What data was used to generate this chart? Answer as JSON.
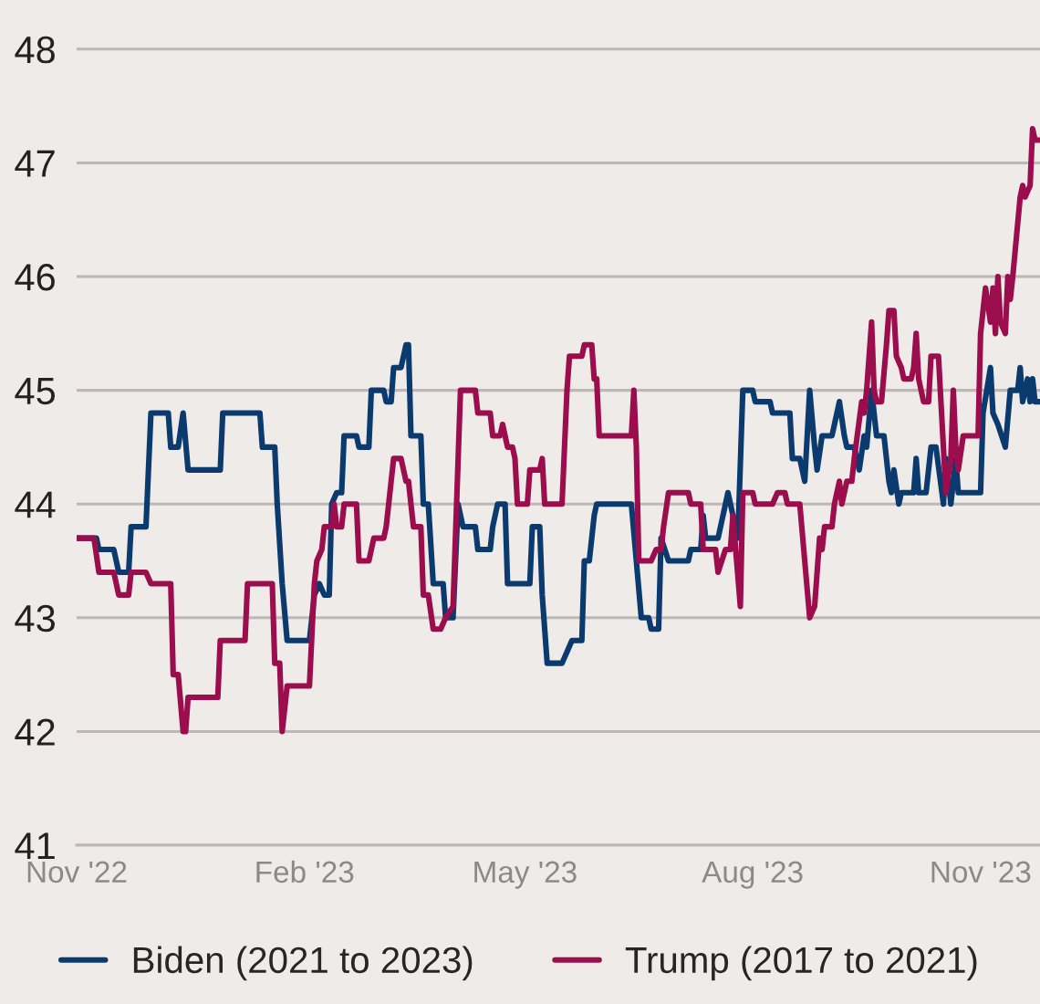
{
  "chart_data": {
    "type": "line",
    "xlim": [
      "2022-11-01",
      "2023-11-25"
    ],
    "xticks": [
      {
        "value": "2022-11-01",
        "label": "Nov '22"
      },
      {
        "value": "2023-02-01",
        "label": "Feb '23"
      },
      {
        "value": "2023-05-01",
        "label": "May '23"
      },
      {
        "value": "2023-08-01",
        "label": "Aug '23"
      },
      {
        "value": "2023-11-01",
        "label": "Nov '23"
      }
    ],
    "ylim": [
      41,
      48.4
    ],
    "yticks": [
      41,
      42,
      43,
      44,
      45,
      46,
      47,
      48
    ],
    "grid": "y",
    "legend": "bottom",
    "series": [
      {
        "name": "Biden (2021 to 2023)",
        "color": "#0b3a6f",
        "x": [
          "2022-11-01",
          "2022-11-09",
          "2022-11-10",
          "2022-11-16",
          "2022-11-18",
          "2022-11-22",
          "2022-11-23",
          "2022-11-29",
          "2022-12-01",
          "2022-12-08",
          "2022-12-09",
          "2022-12-12",
          "2022-12-14",
          "2022-12-16",
          "2022-12-29",
          "2022-12-30",
          "2023-01-14",
          "2023-01-15",
          "2023-01-20",
          "2023-01-21",
          "2023-01-23",
          "2023-01-25",
          "2023-02-03",
          "2023-02-05",
          "2023-02-07",
          "2023-02-09",
          "2023-02-11",
          "2023-02-12",
          "2023-02-14",
          "2023-02-16",
          "2023-02-17",
          "2023-02-22",
          "2023-02-23",
          "2023-02-27",
          "2023-02-28",
          "2023-03-05",
          "2023-03-06",
          "2023-03-08",
          "2023-03-09",
          "2023-03-12",
          "2023-03-14",
          "2023-03-15",
          "2023-03-16",
          "2023-03-20",
          "2023-03-21",
          "2023-03-23",
          "2023-03-25",
          "2023-03-29",
          "2023-03-30",
          "2023-04-02",
          "2023-04-03",
          "2023-04-04",
          "2023-04-06",
          "2023-04-11",
          "2023-04-12",
          "2023-04-17",
          "2023-04-18",
          "2023-04-20",
          "2023-04-23",
          "2023-04-24",
          "2023-05-03",
          "2023-05-04",
          "2023-05-07",
          "2023-05-08",
          "2023-05-10",
          "2023-05-16",
          "2023-05-18",
          "2023-05-20",
          "2023-05-24",
          "2023-05-25",
          "2023-05-27",
          "2023-05-29",
          "2023-05-30",
          "2023-06-13",
          "2023-06-17",
          "2023-06-20",
          "2023-06-21",
          "2023-06-24",
          "2023-06-25",
          "2023-06-28",
          "2023-07-06",
          "2023-07-07",
          "2023-07-11",
          "2023-07-12",
          "2023-07-13",
          "2023-07-18",
          "2023-07-22",
          "2023-07-23",
          "2023-07-25",
          "2023-07-26",
          "2023-07-28",
          "2023-08-01",
          "2023-08-02",
          "2023-08-08",
          "2023-08-09",
          "2023-08-16",
          "2023-08-17",
          "2023-08-20",
          "2023-08-22",
          "2023-08-24",
          "2023-08-26",
          "2023-08-27",
          "2023-08-29",
          "2023-09-02",
          "2023-09-03",
          "2023-09-05",
          "2023-09-07",
          "2023-09-08",
          "2023-09-11",
          "2023-09-13",
          "2023-09-15",
          "2023-09-16",
          "2023-09-18",
          "2023-09-20",
          "2023-09-23",
          "2023-09-25",
          "2023-09-26",
          "2023-09-27",
          "2023-09-29",
          "2023-09-30",
          "2023-10-05",
          "2023-10-06",
          "2023-10-07",
          "2023-10-10",
          "2023-10-12",
          "2023-10-14",
          "2023-10-17",
          "2023-10-18",
          "2023-10-20",
          "2023-10-22",
          "2023-10-23",
          "2023-11-01",
          "2023-11-02",
          "2023-11-05",
          "2023-11-06",
          "2023-11-08",
          "2023-11-11",
          "2023-11-13",
          "2023-11-16",
          "2023-11-17",
          "2023-11-18",
          "2023-11-20",
          "2023-11-21",
          "2023-11-22",
          "2023-11-23",
          "2023-11-25"
        ],
        "values": [
          43.7,
          43.7,
          43.6,
          43.6,
          43.4,
          43.4,
          43.8,
          43.8,
          44.8,
          44.8,
          44.5,
          44.5,
          44.8,
          44.3,
          44.3,
          44.8,
          44.8,
          44.5,
          44.5,
          44.0,
          43.3,
          42.8,
          42.8,
          43.2,
          43.3,
          43.2,
          43.2,
          44.0,
          44.1,
          44.1,
          44.6,
          44.6,
          44.5,
          44.5,
          45.0,
          45.0,
          44.9,
          44.9,
          45.2,
          45.2,
          45.4,
          45.4,
          44.6,
          44.6,
          44.0,
          44.0,
          43.3,
          43.3,
          43.0,
          43.0,
          43.5,
          44.0,
          43.8,
          43.8,
          43.6,
          43.6,
          43.8,
          44.0,
          44.0,
          43.3,
          43.3,
          43.8,
          43.8,
          43.2,
          42.6,
          42.6,
          42.7,
          42.8,
          42.8,
          43.5,
          43.5,
          43.9,
          44.0,
          44.0,
          43.0,
          43.0,
          42.9,
          42.9,
          43.7,
          43.5,
          43.5,
          43.6,
          43.6,
          43.9,
          43.7,
          43.7,
          44.1,
          44.0,
          43.8,
          43.7,
          45.0,
          45.0,
          44.9,
          44.9,
          44.8,
          44.8,
          44.4,
          44.4,
          44.2,
          45.0,
          44.5,
          44.3,
          44.6,
          44.6,
          44.7,
          44.9,
          44.6,
          44.5,
          44.5,
          44.3,
          44.6,
          44.5,
          45.0,
          44.6,
          44.6,
          44.2,
          44.1,
          44.3,
          44.0,
          44.1,
          44.1,
          44.4,
          44.1,
          44.1,
          44.5,
          44.5,
          44.0,
          44.4,
          44.0,
          44.4,
          44.1,
          44.1,
          44.8,
          45.2,
          44.8,
          44.7,
          44.5,
          45.0,
          45.0,
          45.2,
          44.9,
          45.1,
          44.9,
          45.1,
          44.9,
          44.9
        ]
      },
      {
        "name": "Trump (2017 to 2021)",
        "color": "#9b0d4c",
        "x": [
          "2022-11-01",
          "2022-11-08",
          "2022-11-10",
          "2022-11-16",
          "2022-11-18",
          "2022-11-22",
          "2022-11-23",
          "2022-11-29",
          "2022-12-01",
          "2022-12-09",
          "2022-12-10",
          "2022-12-12",
          "2022-12-14",
          "2022-12-15",
          "2022-12-16",
          "2022-12-28",
          "2022-12-29",
          "2023-01-08",
          "2023-01-09",
          "2023-01-19",
          "2023-01-20",
          "2023-01-22",
          "2023-01-23",
          "2023-01-25",
          "2023-02-03",
          "2023-02-05",
          "2023-02-06",
          "2023-02-08",
          "2023-02-09",
          "2023-02-12",
          "2023-02-13",
          "2023-02-14",
          "2023-02-16",
          "2023-02-17",
          "2023-02-22",
          "2023-02-23",
          "2023-02-27",
          "2023-03-01",
          "2023-03-05",
          "2023-03-06",
          "2023-03-09",
          "2023-03-12",
          "2023-03-14",
          "2023-03-15",
          "2023-03-17",
          "2023-03-20",
          "2023-03-21",
          "2023-03-23",
          "2023-03-25",
          "2023-03-28",
          "2023-03-30",
          "2023-04-02",
          "2023-04-05",
          "2023-04-11",
          "2023-04-12",
          "2023-04-17",
          "2023-04-18",
          "2023-04-21",
          "2023-04-22",
          "2023-04-24",
          "2023-04-26",
          "2023-04-27",
          "2023-04-28",
          "2023-05-02",
          "2023-05-03",
          "2023-05-07",
          "2023-05-08",
          "2023-05-09",
          "2023-05-16",
          "2023-05-18",
          "2023-05-19",
          "2023-05-24",
          "2023-05-25",
          "2023-05-28",
          "2023-05-29",
          "2023-05-30",
          "2023-05-31",
          "2023-06-13",
          "2023-06-14",
          "2023-06-15",
          "2023-06-16",
          "2023-06-21",
          "2023-06-23",
          "2023-06-25",
          "2023-06-26",
          "2023-06-28",
          "2023-07-06",
          "2023-07-07",
          "2023-07-11",
          "2023-07-12",
          "2023-07-17",
          "2023-07-18",
          "2023-07-21",
          "2023-07-23",
          "2023-07-24",
          "2023-07-27",
          "2023-07-28",
          "2023-08-01",
          "2023-08-02",
          "2023-08-09",
          "2023-08-11",
          "2023-08-14",
          "2023-08-15",
          "2023-08-20",
          "2023-08-24",
          "2023-08-26",
          "2023-08-28",
          "2023-08-29",
          "2023-08-30",
          "2023-09-02",
          "2023-09-03",
          "2023-09-05",
          "2023-09-06",
          "2023-09-08",
          "2023-09-10",
          "2023-09-11",
          "2023-09-14",
          "2023-09-15",
          "2023-09-16",
          "2023-09-18",
          "2023-09-19",
          "2023-09-20",
          "2023-09-22",
          "2023-09-24",
          "2023-09-25",
          "2023-09-27",
          "2023-09-28",
          "2023-09-30",
          "2023-10-01",
          "2023-10-04",
          "2023-10-05",
          "2023-10-06",
          "2023-10-07",
          "2023-10-09",
          "2023-10-11",
          "2023-10-12",
          "2023-10-15",
          "2023-10-17",
          "2023-10-18",
          "2023-10-20",
          "2023-10-21",
          "2023-10-22",
          "2023-10-23",
          "2023-10-25",
          "2023-10-31",
          "2023-11-01",
          "2023-11-02",
          "2023-11-03",
          "2023-11-05",
          "2023-11-06",
          "2023-11-07",
          "2023-11-08",
          "2023-11-09",
          "2023-11-11",
          "2023-11-12",
          "2023-11-13",
          "2023-11-14",
          "2023-11-17",
          "2023-11-18",
          "2023-11-19",
          "2023-11-21",
          "2023-11-22",
          "2023-11-23",
          "2023-11-25"
        ],
        "values": [
          43.7,
          43.7,
          43.4,
          43.4,
          43.2,
          43.2,
          43.4,
          43.4,
          43.3,
          43.3,
          42.5,
          42.5,
          42.0,
          42.0,
          42.3,
          42.3,
          42.8,
          42.8,
          43.3,
          43.3,
          42.6,
          42.6,
          42.0,
          42.4,
          42.4,
          43.3,
          43.5,
          43.6,
          43.8,
          43.8,
          44.0,
          43.8,
          43.8,
          44.0,
          44.0,
          43.5,
          43.5,
          43.7,
          43.7,
          43.8,
          44.4,
          44.4,
          44.2,
          44.2,
          43.8,
          43.8,
          43.2,
          43.2,
          42.9,
          42.9,
          43.0,
          43.1,
          45.0,
          45.0,
          44.8,
          44.8,
          44.6,
          44.6,
          44.7,
          44.5,
          44.5,
          44.4,
          44.0,
          44.0,
          44.3,
          44.3,
          44.4,
          44.0,
          44.0,
          45.0,
          45.3,
          45.3,
          45.4,
          45.4,
          45.1,
          45.1,
          44.6,
          44.6,
          45.0,
          44.5,
          43.5,
          43.5,
          43.6,
          43.6,
          43.8,
          44.1,
          44.1,
          44.0,
          44.0,
          43.6,
          43.6,
          43.4,
          43.6,
          43.6,
          43.9,
          43.1,
          44.1,
          44.1,
          44.0,
          44.0,
          44.1,
          44.1,
          44.0,
          44.0,
          43.0,
          43.1,
          43.7,
          43.6,
          43.8,
          43.8,
          44.0,
          44.2,
          44.0,
          44.2,
          44.2,
          44.4,
          44.9,
          44.8,
          45.0,
          45.6,
          45.0,
          44.9,
          44.9,
          45.4,
          45.7,
          45.7,
          45.3,
          45.2,
          45.1,
          45.1,
          45.2,
          45.5,
          45.1,
          44.9,
          44.9,
          45.3,
          45.3,
          44.5,
          44.1,
          44.4,
          45.0,
          44.5,
          44.3,
          44.6,
          44.6,
          45.5,
          45.7,
          45.9,
          45.6,
          45.9,
          45.5,
          46.0,
          45.6,
          45.5,
          46.0,
          45.8,
          46.0,
          46.7,
          46.8,
          46.7,
          46.8,
          47.3,
          47.2,
          47.2
        ]
      }
    ]
  }
}
